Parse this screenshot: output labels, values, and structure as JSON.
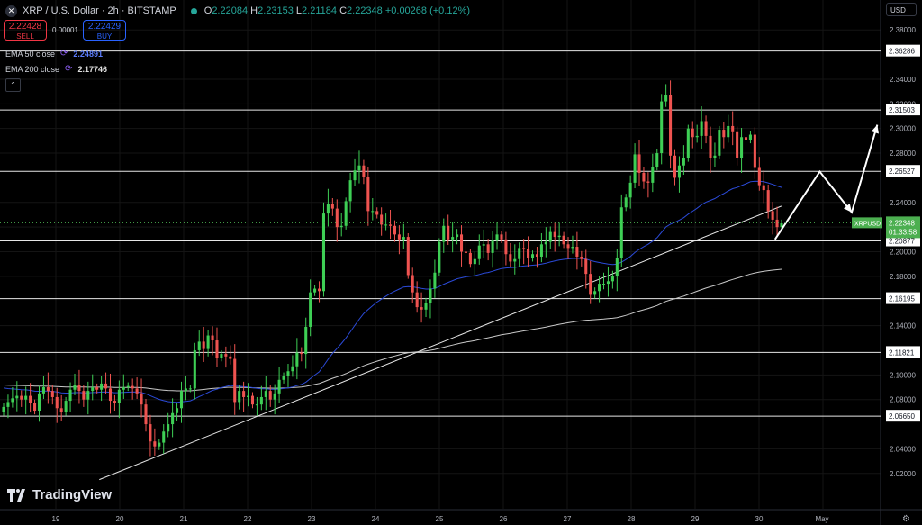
{
  "header": {
    "symbol_icon": "xrp-icon",
    "title": "XRP / U.S. Dollar · 2h · BITSTAMP",
    "open_label": "O",
    "open": "2.22084",
    "high_label": "H",
    "high": "2.23153",
    "low_label": "L",
    "low": "2.21184",
    "close_label": "C",
    "close": "2.22348",
    "change": "+0.00268 (+0.12%)"
  },
  "trade": {
    "sell_price": "2.22428",
    "sell_label": "SELL",
    "spread": "0.00001",
    "buy_price": "2.22429",
    "buy_label": "BUY"
  },
  "indicators": {
    "ema50_label": "EMA 50 close",
    "ema50_value": "2.24891",
    "ema200_label": "EMA 200 close",
    "ema200_value": "2.17746"
  },
  "currency_button": "USD",
  "branding": "TradingView",
  "colors": {
    "up": "#26a69a",
    "up_body": "#3ecf55",
    "down": "#ef5350",
    "ema50": "#2b4ad8",
    "ema200": "#c8c8c8",
    "price_tag": "#4caf50"
  },
  "chart_data": {
    "type": "candlestick",
    "interval": "2h",
    "y_axis_ticks": [
      2.38,
      2.34,
      2.32,
      2.3,
      2.28,
      2.24,
      2.22,
      2.2,
      2.18,
      2.14,
      2.1,
      2.08,
      2.04,
      2.02
    ],
    "y_axis_ticks_labels": [
      "2.38000",
      "2.34000",
      "2.32000",
      "2.30000",
      "2.28000",
      "2.24000",
      "2.22000",
      "2.20000",
      "2.18000",
      "2.14000",
      "2.10000",
      "2.08000",
      "2.04000",
      "2.02000"
    ],
    "ylim": [
      2.0045,
      2.3882
    ],
    "x_axis_ticks": [
      "19",
      "20",
      "21",
      "22",
      "23",
      "24",
      "25",
      "26",
      "27",
      "28",
      "29",
      "30",
      "May"
    ],
    "horizontal_levels": [
      2.36286,
      2.31503,
      2.26527,
      2.20877,
      2.16195,
      2.11821,
      2.0665
    ],
    "horizontal_level_labels": [
      "2.36286",
      "2.31503",
      "2.26527",
      "2.20877",
      "2.16195",
      "2.11821",
      "2.06650"
    ],
    "last_price": {
      "symbol": "XRPUSD",
      "value": "2.22348",
      "countdown": "01:33:58"
    },
    "trendline": {
      "from": [
        0.68,
        2.015
      ],
      "to": [
        11.35,
        2.237
      ]
    },
    "projection_path": [
      [
        11.25,
        2.21
      ],
      [
        11.95,
        2.265
      ],
      [
        12.45,
        2.232
      ],
      [
        12.85,
        2.303
      ]
    ],
    "closes": [
      2.074,
      2.078,
      2.081,
      2.083,
      2.08,
      2.083,
      2.077,
      2.071,
      2.085,
      2.09,
      2.087,
      2.082,
      2.073,
      2.07,
      2.079,
      2.088,
      2.092,
      2.087,
      2.08,
      2.087,
      2.09,
      2.088,
      2.093,
      2.089,
      2.079,
      2.077,
      2.088,
      2.09,
      2.091,
      2.089,
      2.085,
      2.076,
      2.06,
      2.046,
      2.042,
      2.045,
      2.054,
      2.06,
      2.069,
      2.073,
      2.087,
      2.089,
      2.089,
      2.12,
      2.127,
      2.121,
      2.132,
      2.128,
      2.114,
      2.117,
      2.115,
      2.113,
      2.078,
      2.087,
      2.082,
      2.083,
      2.076,
      2.076,
      2.082,
      2.087,
      2.08,
      2.085,
      2.096,
      2.099,
      2.103,
      2.107,
      2.118,
      2.117,
      2.139,
      2.167,
      2.17,
      2.168,
      2.231,
      2.239,
      2.235,
      2.22,
      2.221,
      2.241,
      2.258,
      2.266,
      2.27,
      2.261,
      2.233,
      2.233,
      2.23,
      2.222,
      2.222,
      2.221,
      2.214,
      2.21,
      2.212,
      2.181,
      2.167,
      2.155,
      2.153,
      2.158,
      2.17,
      2.183,
      2.208,
      2.221,
      2.21,
      2.212,
      2.214,
      2.2,
      2.199,
      2.19,
      2.194,
      2.205,
      2.206,
      2.199,
      2.209,
      2.214,
      2.21,
      2.198,
      2.192,
      2.194,
      2.203,
      2.202,
      2.195,
      2.198,
      2.196,
      2.206,
      2.208,
      2.216,
      2.212,
      2.213,
      2.206,
      2.203,
      2.204,
      2.196,
      2.194,
      2.182,
      2.165,
      2.168,
      2.174,
      2.174,
      2.176,
      2.18,
      2.195,
      2.236,
      2.244,
      2.256,
      2.279,
      2.264,
      2.257,
      2.256,
      2.269,
      2.28,
      2.322,
      2.327,
      2.278,
      2.26,
      2.27,
      2.276,
      2.3,
      2.293,
      2.294,
      2.306,
      2.294,
      2.276,
      2.278,
      2.299,
      2.293,
      2.302,
      2.297,
      2.276,
      2.293,
      2.291,
      2.295,
      2.268,
      2.254,
      2.25,
      2.233,
      2.226,
      2.22,
      2.223
    ]
  }
}
